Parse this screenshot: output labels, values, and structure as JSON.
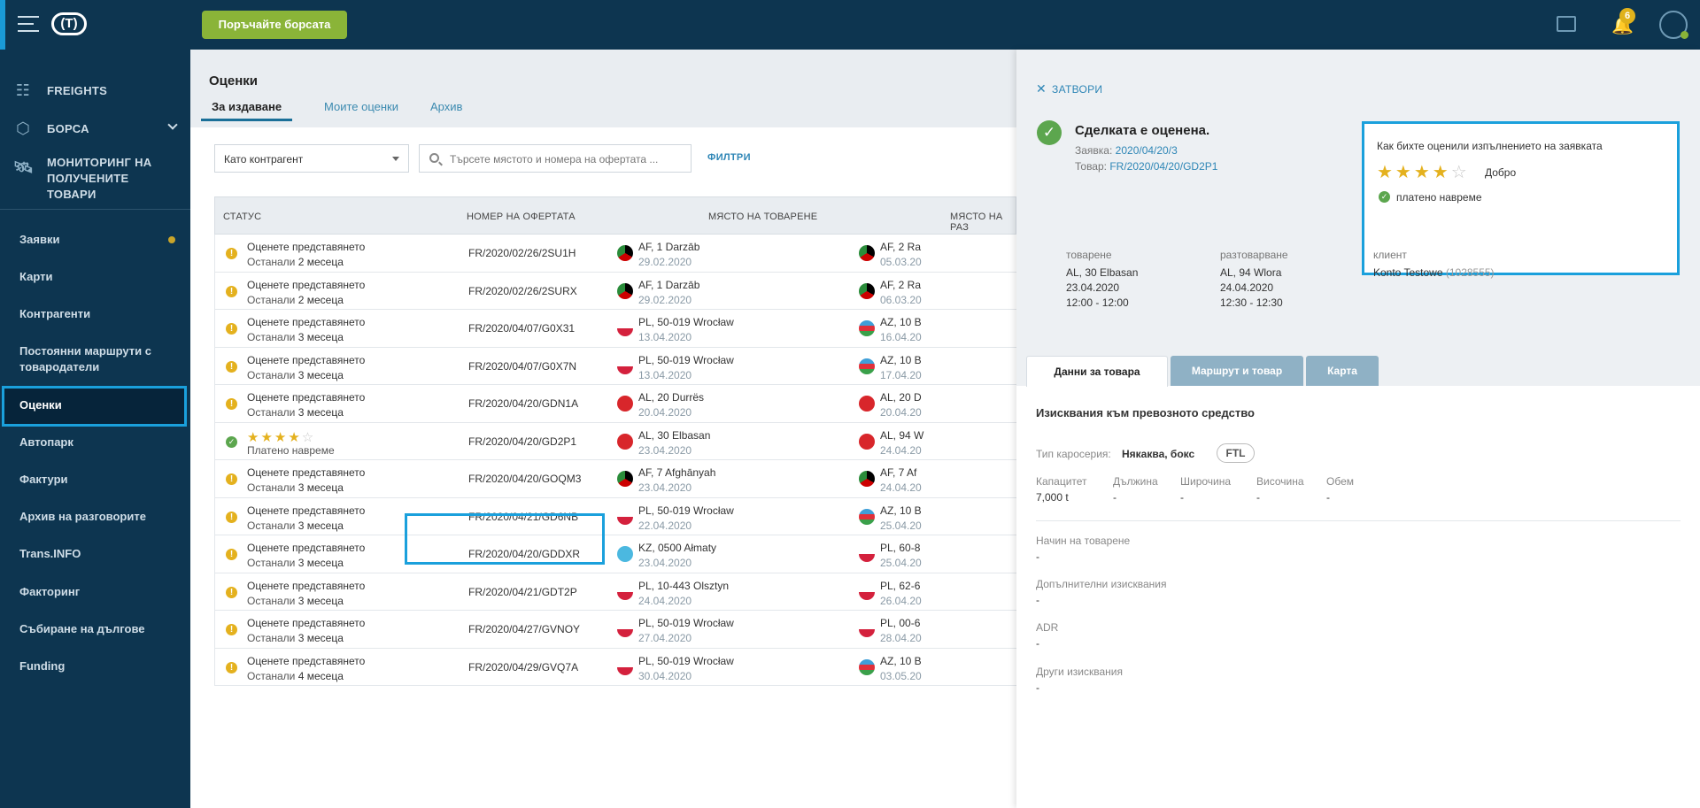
{
  "topbar": {
    "search_button": "Поръчайте борсата",
    "notifications_count": "6",
    "logo_text": "(T)"
  },
  "sidebar": {
    "main_items": [
      {
        "label": "FREIGHTS",
        "icon": "freights-icon"
      },
      {
        "label": "БОРСА",
        "icon": "cube-icon"
      },
      {
        "label": "МОНИТОРИНГ НА ПОЛУЧЕНИТЕ ТОВАРИ",
        "icon": "satellite-icon"
      }
    ],
    "items": [
      "Заявки",
      "Карти",
      "Контрагенти",
      "Постоянни маршрути с товародатели",
      "Оценки",
      "Автопарк",
      "Фактури",
      "Архив на разговорите",
      "Trans.INFO",
      "Факторинг",
      "Събиране на дългове",
      "Funding"
    ]
  },
  "main": {
    "title": "Оценки",
    "tabs": [
      "За издаване",
      "Моите оценки",
      "Архив"
    ],
    "select_value": "Като контрагент",
    "search_placeholder": "Търсете мястото и номера на офертата ...",
    "filters": "ФИЛТРИ"
  },
  "table": {
    "headers": [
      "СТАТУС",
      "НОМЕР НА ОФЕРТАТА",
      "МЯСТО НА ТОВАРЕНЕ",
      "МЯСТО НА РАЗ"
    ],
    "rows": [
      {
        "status": "warn",
        "line1": "Оценете представянето",
        "line2a": "Останали ",
        "line2b": "2 месеца",
        "offer": "FR/2020/02/26/2SU1H",
        "load": "AF, 1 Darzāb",
        "load_date": "29.02.2020",
        "load_flag": "af",
        "unload": "AF, 2 Ra",
        "unload_date": "05.03.20",
        "unload_flag": "af"
      },
      {
        "status": "warn",
        "line1": "Оценете представянето",
        "line2a": "Останали ",
        "line2b": "2 месеца",
        "offer": "FR/2020/02/26/2SURX",
        "load": "AF, 1 Darzāb",
        "load_date": "29.02.2020",
        "load_flag": "af",
        "unload": "AF, 2 Ra",
        "unload_date": "06.03.20",
        "unload_flag": "af"
      },
      {
        "status": "warn",
        "line1": "Оценете представянето",
        "line2a": "Останали ",
        "line2b": "3 месеца",
        "offer": "FR/2020/04/07/G0X31",
        "load": "PL, 50-019 Wrocław",
        "load_date": "13.04.2020",
        "load_flag": "pl",
        "unload": "AZ, 10 B",
        "unload_date": "16.04.20",
        "unload_flag": "az"
      },
      {
        "status": "warn",
        "line1": "Оценете представянето",
        "line2a": "Останали ",
        "line2b": "3 месеца",
        "offer": "FR/2020/04/07/G0X7N",
        "load": "PL, 50-019 Wrocław",
        "load_date": "13.04.2020",
        "load_flag": "pl",
        "unload": "AZ, 10 B",
        "unload_date": "17.04.20",
        "unload_flag": "az"
      },
      {
        "status": "warn",
        "line1": "Оценете представянето",
        "line2a": "Останали ",
        "line2b": "3 месеца",
        "offer": "FR/2020/04/20/GDN1A",
        "load": "AL, 20 Durrës",
        "load_date": "20.04.2020",
        "load_flag": "al",
        "unload": "AL, 20 D",
        "unload_date": "20.04.20",
        "unload_flag": "al"
      },
      {
        "status": "rated",
        "stars": 4,
        "line2plain": "Платено навреме",
        "offer": "FR/2020/04/20/GD2P1",
        "load": "AL, 30 Elbasan",
        "load_date": "23.04.2020",
        "load_flag": "al",
        "unload": "AL, 94 W",
        "unload_date": "24.04.20",
        "unload_flag": "al"
      },
      {
        "status": "warn",
        "line1": "Оценете представянето",
        "line2a": "Останали ",
        "line2b": "3 месеца",
        "offer": "FR/2020/04/20/GOQM3",
        "load": "AF, 7 Afghānyah",
        "load_date": "23.04.2020",
        "load_flag": "af",
        "unload": "AF, 7 Af",
        "unload_date": "24.04.20",
        "unload_flag": "af"
      },
      {
        "status": "warn",
        "line1": "Оценете представянето",
        "line2a": "Останали ",
        "line2b": "3 месеца",
        "offer": "FR/2020/04/21/GD6NB",
        "load": "PL, 50-019 Wrocław",
        "load_date": "22.04.2020",
        "load_flag": "pl",
        "unload": "AZ, 10 B",
        "unload_date": "25.04.20",
        "unload_flag": "az"
      },
      {
        "status": "warn",
        "line1": "Оценете представянето",
        "line2a": "Останали ",
        "line2b": "3 месеца",
        "offer": "FR/2020/04/20/GDDXR",
        "load": "KZ, 0500 Ałmaty",
        "load_date": "23.04.2020",
        "load_flag": "kz",
        "unload": "PL, 60-8",
        "unload_date": "25.04.20",
        "unload_flag": "pl"
      },
      {
        "status": "warn",
        "line1": "Оценете представянето",
        "line2a": "Останали ",
        "line2b": "3 месеца",
        "offer": "FR/2020/04/21/GDT2P",
        "load": "PL, 10-443 Olsztyn",
        "load_date": "24.04.2020",
        "load_flag": "pl",
        "unload": "PL, 62-6",
        "unload_date": "26.04.20",
        "unload_flag": "pl"
      },
      {
        "status": "warn",
        "line1": "Оценете представянето",
        "line2a": "Останали ",
        "line2b": "3 месеца",
        "offer": "FR/2020/04/27/GVNOY",
        "load": "PL, 50-019 Wrocław",
        "load_date": "27.04.2020",
        "load_flag": "pl",
        "unload": "PL, 00-6",
        "unload_date": "28.04.20",
        "unload_flag": "pl"
      },
      {
        "status": "warn",
        "line1": "Оценете представянето",
        "line2a": "Останали ",
        "line2b": "4 месеца",
        "offer": "FR/2020/04/29/GVQ7A",
        "load": "PL, 50-019 Wrocław",
        "load_date": "30.04.2020",
        "load_flag": "pl",
        "unload": "AZ, 10 B",
        "unload_date": "03.05.20",
        "unload_flag": "az"
      }
    ]
  },
  "panel": {
    "close": "ЗАТВОРИ",
    "title": "Сделката е оценена.",
    "order_label": "Заявка:",
    "order_value": "2020/04/20/3",
    "cargo_label": "Товар:",
    "cargo_value": "FR/2020/04/20/GD2P1",
    "rating_question": "Как бихте оценили изпълнението на заявката",
    "rating_stars": 4,
    "rating_word": "Добро",
    "paid_on_time": "платено навреме",
    "loading_label": "товарене",
    "loading_place": "AL, 30 Elbasan",
    "loading_date": "23.04.2020",
    "loading_time": "12:00 - 12:00",
    "unloading_label": "разтоварване",
    "unloading_place": "AL, 94 Wlora",
    "unloading_date": "24.04.2020",
    "unloading_time": "12:30 - 12:30",
    "client_label": "клиент",
    "client_name": "Konto Testowe",
    "client_id": "(1028555)",
    "tabs": [
      "Данни за товара",
      "Маршрут и товар",
      "Карта"
    ],
    "section_title": "Изисквания към превозното средство",
    "body_type_label": "Тип каросерия:",
    "body_type_value": "Някаква, бокс",
    "ftl": "FTL",
    "dims": [
      {
        "label": "Капацитет",
        "value": "7,000 t"
      },
      {
        "label": "Дължина",
        "value": "-"
      },
      {
        "label": "Широчина",
        "value": "-"
      },
      {
        "label": "Височина",
        "value": "-"
      },
      {
        "label": "Обем",
        "value": "-"
      }
    ],
    "extra": [
      {
        "label": "Начин на товарене",
        "value": "-"
      },
      {
        "label": "Допълнителни изисквания",
        "value": "-"
      },
      {
        "label": "ADR",
        "value": "-"
      },
      {
        "label": "Други изисквания",
        "value": "-"
      }
    ]
  },
  "colors": {
    "navy": "#0d3550",
    "accent_blue": "#1aa0dc",
    "green": "#8ab438",
    "warn": "#e4b11e"
  }
}
